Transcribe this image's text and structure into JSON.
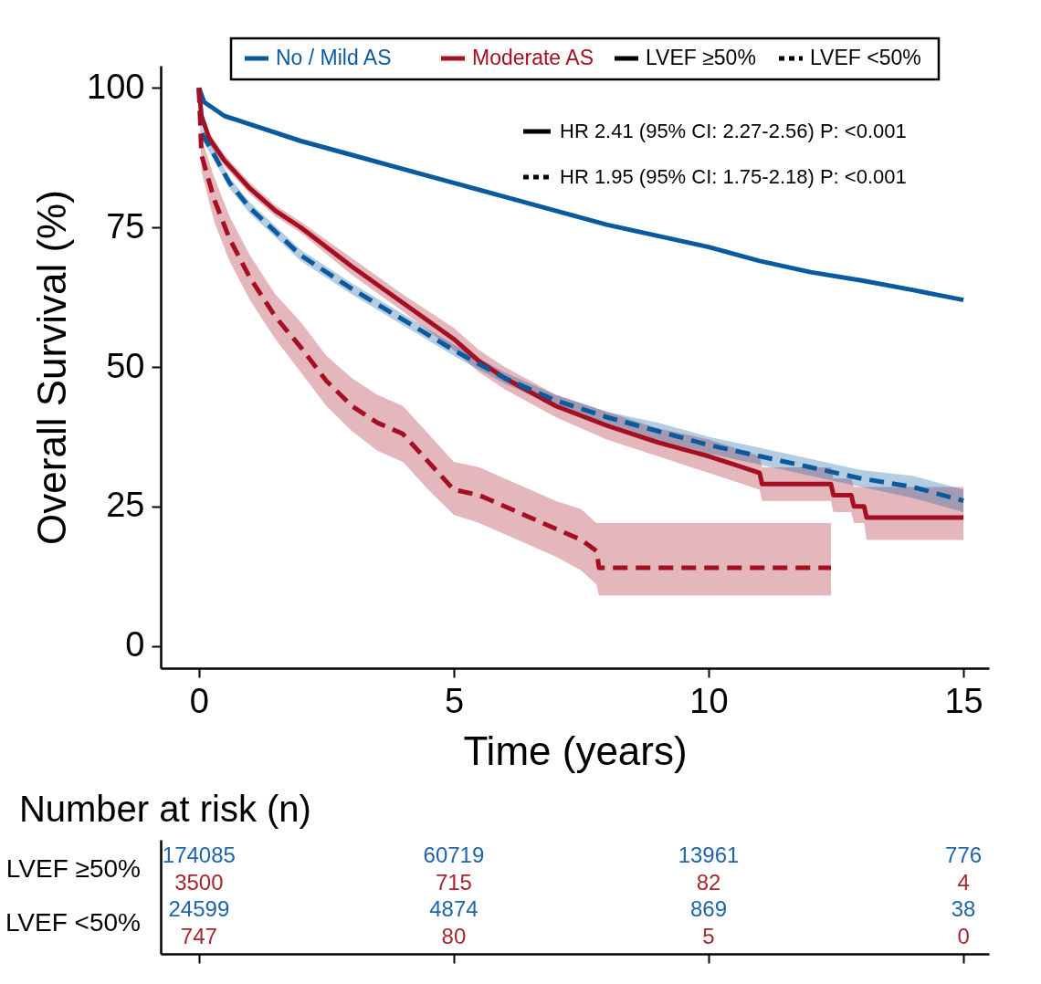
{
  "chart_data": [
    {
      "type": "line",
      "xlabel": "Time (years)",
      "ylabel": "Overall Survival (%)",
      "xlim": [
        -0.75,
        15.5
      ],
      "ylim": [
        -4,
        104
      ],
      "xticks": [
        0,
        5,
        10,
        15
      ],
      "yticks": [
        0,
        25,
        50,
        75,
        100
      ],
      "grid": false,
      "legend": "top",
      "annotations": [
        "LVEF ≥50%",
        "LVEF <50%",
        "HR 2.41 (95% CI: 2.27-2.56)  P: <0.001",
        "HR 1.95 (95% CI: 1.75-2.18)  P: <0.001"
      ],
      "series": [
        {
          "name": "No / Mild AS",
          "color": "#0a5a9e",
          "line_style": "solid",
          "x": [
            0,
            0.1,
            0.5,
            1,
            2,
            3,
            4,
            5,
            6,
            7,
            8,
            9,
            10,
            11,
            12,
            13,
            14,
            15
          ],
          "values": [
            100,
            97.5,
            95,
            93.5,
            90.5,
            88,
            85.5,
            83,
            80.5,
            78,
            75.5,
            73.5,
            71.5,
            69,
            67,
            65.5,
            63.8,
            62
          ]
        },
        {
          "name": "Moderate AS",
          "color": "#a50f22",
          "line_style": "solid",
          "x": [
            0,
            0.05,
            0.2,
            0.5,
            1,
            1.5,
            2,
            3,
            4,
            5,
            5.5,
            6,
            7,
            8,
            9,
            10,
            10.5,
            11,
            11.05,
            12.4,
            12.45,
            12.8,
            12.85,
            13.05,
            13.1,
            15
          ],
          "values": [
            100,
            95,
            91,
            87,
            82,
            78,
            75,
            68,
            61.5,
            55,
            51,
            48,
            43,
            39.5,
            36.5,
            34,
            32.5,
            31,
            29,
            29,
            27,
            27,
            25,
            25,
            23,
            23
          ],
          "lower": [
            100,
            94,
            90,
            86,
            81,
            77,
            74,
            66.5,
            60,
            53,
            49,
            46,
            41,
            37,
            34,
            31,
            29.5,
            28,
            26,
            26,
            24,
            24,
            22,
            22,
            19,
            19
          ],
          "upper": [
            100,
            96,
            92,
            88,
            83,
            79,
            76,
            69.5,
            63,
            57,
            53,
            50,
            45,
            42,
            39,
            37,
            35.5,
            34,
            32,
            32,
            30,
            30,
            28.5,
            28.5,
            28.5,
            28.5
          ]
        },
        {
          "color": "#0a5a9e",
          "line_style": "dashed",
          "x": [
            0,
            0.05,
            0.3,
            0.6,
            1,
            2,
            3,
            4,
            5,
            6,
            7,
            8,
            9,
            10,
            11,
            12,
            13,
            14,
            15
          ],
          "values": [
            100,
            92,
            88,
            83,
            78.5,
            70,
            64,
            58.5,
            53,
            48,
            44,
            41,
            38.5,
            36,
            34,
            32,
            30,
            28.5,
            26
          ],
          "lower": [
            100,
            91,
            87,
            82,
            77.5,
            69,
            63,
            57.5,
            52,
            47,
            43,
            40,
            37,
            34.5,
            32.5,
            30.5,
            28.5,
            26.5,
            24
          ],
          "upper": [
            100,
            93,
            89,
            84,
            79.5,
            71,
            65,
            59.5,
            54,
            49,
            45,
            42,
            40,
            37.5,
            35.5,
            33.5,
            31.5,
            30.5,
            28
          ]
        },
        {
          "color": "#a50f22",
          "line_style": "dashed",
          "x": [
            0,
            0.05,
            0.3,
            0.6,
            1,
            1.5,
            2,
            2.5,
            3,
            3.5,
            4,
            4.5,
            5,
            5.5,
            6,
            6.5,
            7,
            7.5,
            7.8,
            7.85,
            12.4
          ],
          "values": [
            100,
            88,
            80,
            73,
            66,
            59,
            53.5,
            47.5,
            43,
            40,
            38,
            33,
            28,
            27,
            25,
            23,
            21,
            19,
            17,
            14,
            14
          ],
          "lower": [
            100,
            85,
            76,
            69,
            62,
            55,
            49,
            43,
            38.5,
            35,
            33,
            28,
            23.5,
            22,
            20,
            18,
            16,
            13.5,
            11,
            9,
            9
          ],
          "upper": [
            100,
            91,
            84,
            77,
            70,
            63,
            58,
            52,
            48,
            45,
            43,
            38,
            33,
            32,
            30,
            28,
            26,
            24.5,
            22,
            22,
            22
          ]
        }
      ]
    },
    {
      "type": "other",
      "title": "Number at risk (n)",
      "y_categories": [
        "LVEF ≥50%",
        null,
        "LVEF <50%",
        null
      ],
      "colors": [
        "#1f64a8",
        "#a82530",
        "#1f64a8",
        "#a82530"
      ],
      "cell_labels": [
        [
          "174085",
          "60719",
          "13961",
          "776"
        ],
        [
          "3500",
          "715",
          "82",
          "4"
        ],
        [
          "24599",
          "4874",
          "869",
          "38"
        ],
        [
          "747",
          "80",
          "5",
          "0"
        ]
      ]
    }
  ]
}
